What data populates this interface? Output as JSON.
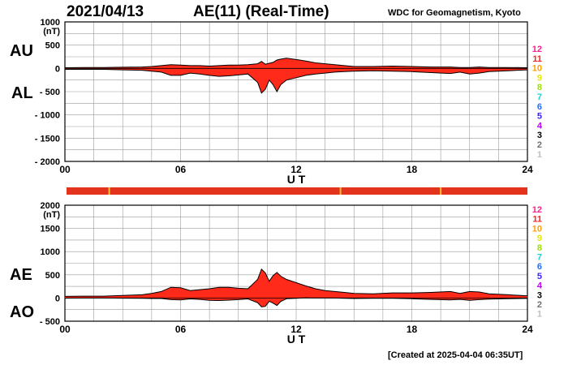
{
  "header": {
    "date": "2021/04/13",
    "title": "AE(11) (Real-Time)",
    "source": "WDC for Geomagnetism, Kyoto"
  },
  "footer": {
    "created": "[Created at 2025-04-04 06:35UT]"
  },
  "colors": {
    "fill": "#ff2a1a",
    "grid": "#9a9a9a",
    "quality_bar": "#e4331c",
    "quality_tick": "#f2c13a"
  },
  "kp_scale": {
    "labels": [
      "12",
      "11",
      "10",
      "9",
      "8",
      "7",
      "6",
      "5",
      "4",
      "3",
      "2",
      "1"
    ],
    "colors": [
      "#ff1f8f",
      "#ff2020",
      "#ffa000",
      "#e6e600",
      "#9ee000",
      "#20d0d0",
      "#1f6fff",
      "#3a1fff",
      "#c000ff",
      "#000000",
      "#707070",
      "#c0c0c0"
    ]
  },
  "quality_bar": {
    "tick_hours": [
      2.3,
      14.3,
      19.5
    ]
  },
  "chart_data": [
    {
      "type": "area",
      "name_labels": [
        "AU",
        "AL"
      ],
      "xlabel": "U T",
      "ylabel_unit": "(nT)",
      "xlim": [
        0,
        24
      ],
      "ylim": [
        -2000,
        1000
      ],
      "x_ticks": [
        0,
        6,
        12,
        18,
        24
      ],
      "x_tick_labels": [
        "00",
        "06",
        "12",
        "18",
        "24"
      ],
      "y_ticks": [
        1000,
        500,
        0,
        -500,
        -1000,
        -1500,
        -2000
      ],
      "y_tick_labels": [
        "1000",
        "500",
        "0",
        "- 500",
        "- 1000",
        "- 1500",
        "- 2000"
      ],
      "grid": true,
      "x": [
        0,
        1,
        2,
        3,
        4,
        4.5,
        5,
        5.5,
        6,
        6.5,
        7,
        7.5,
        8,
        8.5,
        9,
        9.5,
        10,
        10.2,
        10.4,
        10.6,
        10.8,
        11,
        11.2,
        11.5,
        12,
        12.5,
        13,
        13.5,
        14,
        14.5,
        15,
        16,
        17,
        18,
        19,
        20,
        20.5,
        21,
        21.5,
        22,
        23,
        24
      ],
      "series": [
        {
          "name": "AU",
          "values": [
            15,
            20,
            20,
            25,
            30,
            40,
            60,
            80,
            70,
            60,
            60,
            50,
            60,
            70,
            70,
            80,
            100,
            150,
            90,
            110,
            130,
            180,
            200,
            220,
            190,
            160,
            120,
            100,
            80,
            60,
            40,
            40,
            50,
            40,
            30,
            30,
            20,
            20,
            30,
            20,
            20,
            15
          ]
        },
        {
          "name": "AL",
          "values": [
            -20,
            -20,
            -20,
            -30,
            -40,
            -60,
            -80,
            -150,
            -150,
            -100,
            -120,
            -150,
            -170,
            -160,
            -140,
            -120,
            -300,
            -530,
            -450,
            -250,
            -350,
            -500,
            -350,
            -250,
            -200,
            -150,
            -120,
            -100,
            -80,
            -70,
            -60,
            -50,
            -60,
            -70,
            -90,
            -110,
            -80,
            -120,
            -100,
            -70,
            -50,
            -30
          ]
        }
      ]
    },
    {
      "type": "area",
      "name_labels": [
        "AE",
        "AO"
      ],
      "xlabel": "U T",
      "ylabel_unit": "(nT)",
      "xlim": [
        0,
        24
      ],
      "ylim": [
        -500,
        2000
      ],
      "x_ticks": [
        0,
        6,
        12,
        18,
        24
      ],
      "x_tick_labels": [
        "00",
        "06",
        "12",
        "18",
        "24"
      ],
      "y_ticks": [
        2000,
        1500,
        1000,
        500,
        0,
        -500
      ],
      "y_tick_labels": [
        "2000",
        "1500",
        "1000",
        "500",
        "0",
        "- 500"
      ],
      "grid": true,
      "x": [
        0,
        1,
        2,
        3,
        4,
        4.5,
        5,
        5.5,
        6,
        6.5,
        7,
        7.5,
        8,
        8.5,
        9,
        9.5,
        10,
        10.2,
        10.4,
        10.6,
        10.8,
        11,
        11.2,
        11.5,
        12,
        12.5,
        13,
        13.5,
        14,
        14.5,
        15,
        16,
        17,
        18,
        19,
        20,
        20.5,
        21,
        21.5,
        22,
        23,
        24
      ],
      "series": [
        {
          "name": "AE",
          "values": [
            35,
            40,
            40,
            55,
            70,
            100,
            140,
            230,
            220,
            160,
            180,
            200,
            230,
            230,
            210,
            200,
            400,
            620,
            540,
            360,
            480,
            550,
            470,
            400,
            330,
            260,
            200,
            160,
            140,
            120,
            100,
            90,
            110,
            110,
            120,
            140,
            100,
            140,
            130,
            90,
            70,
            45
          ]
        },
        {
          "name": "AO",
          "values": [
            -3,
            0,
            0,
            -3,
            -5,
            -10,
            -10,
            -35,
            -40,
            -20,
            -30,
            -50,
            -55,
            -45,
            -35,
            -20,
            -100,
            -190,
            -180,
            -70,
            -110,
            -160,
            -75,
            -15,
            -5,
            5,
            0,
            0,
            0,
            -5,
            -10,
            -5,
            -5,
            -15,
            -30,
            -40,
            -30,
            -50,
            -35,
            -25,
            -15,
            -8
          ]
        }
      ]
    }
  ]
}
